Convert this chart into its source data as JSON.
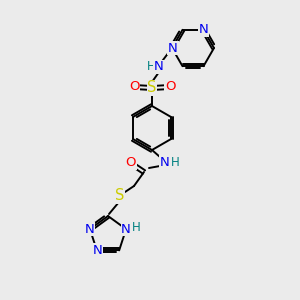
{
  "bg_color": "#ebebeb",
  "atom_colors": {
    "C": "#000000",
    "N": "#0000ee",
    "O": "#ff0000",
    "S": "#cccc00",
    "H": "#008080"
  },
  "bond_color": "#000000",
  "fig_size": [
    3.0,
    3.0
  ],
  "dpi": 100
}
